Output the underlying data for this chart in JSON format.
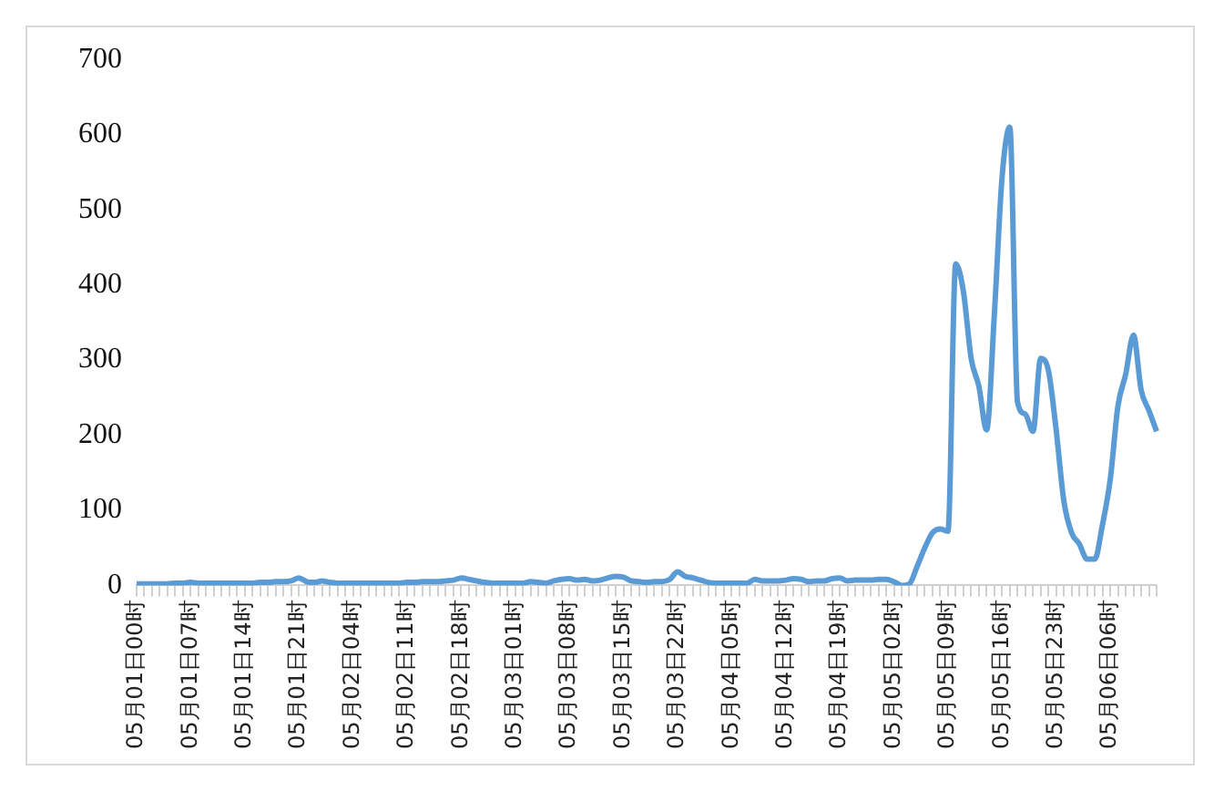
{
  "chart_data": {
    "type": "line",
    "categories": [
      "05月01日00时",
      null,
      null,
      null,
      null,
      null,
      null,
      "05月01日07时",
      null,
      null,
      null,
      null,
      null,
      null,
      "05月01日14时",
      null,
      null,
      null,
      null,
      null,
      null,
      "05月01日21时",
      null,
      null,
      null,
      null,
      null,
      null,
      "05月02日04时",
      null,
      null,
      null,
      null,
      null,
      null,
      "05月02日11时",
      null,
      null,
      null,
      null,
      null,
      null,
      "05月02日18时",
      null,
      null,
      null,
      null,
      null,
      null,
      "05月03日01时",
      null,
      null,
      null,
      null,
      null,
      null,
      "05月03日08时",
      null,
      null,
      null,
      null,
      null,
      null,
      "05月03日15时",
      null,
      null,
      null,
      null,
      null,
      null,
      "05月03日22时",
      null,
      null,
      null,
      null,
      null,
      null,
      "05月04日05时",
      null,
      null,
      null,
      null,
      null,
      null,
      "05月04日12时",
      null,
      null,
      null,
      null,
      null,
      null,
      "05月04日19时",
      null,
      null,
      null,
      null,
      null,
      null,
      "05月05日02时",
      null,
      null,
      null,
      null,
      null,
      null,
      "05月05日09时",
      null,
      null,
      null,
      null,
      null,
      null,
      "05月05日16时",
      null,
      null,
      null,
      null,
      null,
      null,
      "05月05日23时",
      null,
      null,
      null,
      null,
      null,
      null,
      "05月06日06时",
      null,
      null,
      null,
      null,
      null,
      null
    ],
    "series": [
      {
        "color": "#5b9bd5",
        "values": [
          2,
          2,
          2,
          2,
          2,
          3,
          3,
          4,
          3,
          3,
          3,
          3,
          3,
          3,
          3,
          3,
          4,
          4,
          5,
          5,
          6,
          10,
          5,
          4,
          6,
          4,
          3,
          3,
          3,
          3,
          3,
          3,
          3,
          3,
          3,
          4,
          4,
          5,
          5,
          5,
          6,
          7,
          10,
          8,
          6,
          4,
          3,
          3,
          3,
          3,
          3,
          5,
          4,
          3,
          6,
          8,
          9,
          7,
          8,
          6,
          7,
          10,
          12,
          11,
          6,
          5,
          4,
          5,
          5,
          8,
          18,
          12,
          10,
          7,
          4,
          3,
          3,
          3,
          3,
          3,
          8,
          6,
          6,
          6,
          7,
          9,
          8,
          5,
          6,
          6,
          9,
          10,
          6,
          7,
          7,
          7,
          8,
          8,
          5,
          0,
          2,
          25,
          50,
          70,
          75,
          72,
          428,
          391,
          302,
          265,
          207,
          360,
          543,
          610,
          244,
          228,
          205,
          302,
          286,
          207,
          112,
          70,
          55,
          35,
          35,
          81,
          141,
          239,
          281,
          333,
          260,
          233,
          205
        ]
      }
    ],
    "ylim": [
      0,
      700
    ],
    "yticks": [
      0,
      100,
      200,
      300,
      400,
      500,
      600,
      700
    ],
    "marker": "none",
    "line_style": "solid",
    "legend": false
  }
}
